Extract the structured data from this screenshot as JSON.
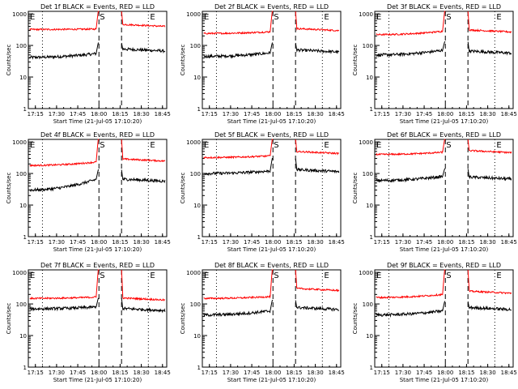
{
  "colors": {
    "events": "#000000",
    "lld": "#ff0000",
    "background": "#ffffff",
    "axes": "#000000"
  },
  "chart_data": [
    {
      "type": "line",
      "detector": "1f",
      "title": "Det 1f BLACK = Events, RED = LLD",
      "xlabel": "Start Time (21-Jul-05 17:10:20)",
      "ylabel": "Counts/sec",
      "x_ticks": [
        "17:15",
        "17:30",
        "17:45",
        "18:00",
        "18:15",
        "18:30",
        "18:45"
      ],
      "y_ticks": [
        "1",
        "10",
        "100",
        "1000"
      ],
      "y_scale": "log",
      "ylim": [
        1,
        1200
      ],
      "markers": {
        "eclipse_start": "E",
        "saa": "S",
        "eclipse_end": "E"
      },
      "vertical_lines": {
        "dotted": [
          "17:20",
          "18:35"
        ],
        "dashed": [
          "18:00",
          "18:16"
        ]
      },
      "series": [
        {
          "role": "events",
          "start": 42,
          "pre_end": 55,
          "peak": 120,
          "post": 70
        },
        {
          "role": "lld",
          "start": 320,
          "pre_end": 330,
          "peak": 1200,
          "post": 420
        }
      ]
    },
    {
      "type": "line",
      "detector": "2f",
      "title": "Det 2f BLACK = Events, RED = LLD",
      "xlabel": "Start Time (21-Jul-05 17:10:20)",
      "ylabel": "Counts/sec",
      "x_ticks": [
        "17:15",
        "17:30",
        "17:45",
        "18:00",
        "18:15",
        "18:30",
        "18:45"
      ],
      "y_ticks": [
        "1",
        "10",
        "100",
        "1000"
      ],
      "y_scale": "log",
      "ylim": [
        1,
        1200
      ],
      "markers": {
        "eclipse_start": "E",
        "saa": "S",
        "eclipse_end": "E"
      },
      "vertical_lines": {
        "dotted": [
          "17:20",
          "18:35"
        ],
        "dashed": [
          "18:00",
          "18:16"
        ]
      },
      "series": [
        {
          "role": "events",
          "start": 45,
          "pre_end": 58,
          "peak": 120,
          "post": 65
        },
        {
          "role": "lld",
          "start": 240,
          "pre_end": 270,
          "peak": 1200,
          "post": 310
        }
      ]
    },
    {
      "type": "line",
      "detector": "3f",
      "title": "Det 3f BLACK = Events, RED = LLD",
      "xlabel": "Start Time (21-Jul-05 17:10:20)",
      "ylabel": "Counts/sec",
      "x_ticks": [
        "17:15",
        "17:30",
        "17:45",
        "18:00",
        "18:15",
        "18:30",
        "18:45"
      ],
      "y_ticks": [
        "1",
        "10",
        "100",
        "1000"
      ],
      "y_scale": "log",
      "ylim": [
        1,
        1200
      ],
      "markers": {
        "eclipse_start": "E",
        "saa": "S",
        "eclipse_end": "E"
      },
      "vertical_lines": {
        "dotted": [
          "17:20",
          "18:35"
        ],
        "dashed": [
          "18:00",
          "18:16"
        ]
      },
      "series": [
        {
          "role": "events",
          "start": 50,
          "pre_end": 70,
          "peak": 130,
          "post": 60
        },
        {
          "role": "lld",
          "start": 220,
          "pre_end": 280,
          "peak": 1200,
          "post": 280
        }
      ]
    },
    {
      "type": "line",
      "detector": "4f",
      "title": "Det 4f BLACK = Events, RED = LLD",
      "xlabel": "Start Time (21-Jul-05 17:10:20)",
      "ylabel": "Counts/sec",
      "x_ticks": [
        "17:15",
        "17:30",
        "17:45",
        "18:00",
        "18:15",
        "18:30",
        "18:45"
      ],
      "y_ticks": [
        "1",
        "10",
        "100",
        "1000"
      ],
      "y_scale": "log",
      "ylim": [
        1,
        1200
      ],
      "markers": {
        "eclipse_start": "E",
        "saa": "S",
        "eclipse_end": "E"
      },
      "vertical_lines": {
        "dotted": [
          "17:20",
          "18:35"
        ],
        "dashed": [
          "18:00",
          "18:16"
        ]
      },
      "series": [
        {
          "role": "events",
          "start": 30,
          "pre_end": 65,
          "peak": 130,
          "post": 60
        },
        {
          "role": "lld",
          "start": 180,
          "pre_end": 230,
          "peak": 1200,
          "post": 260
        }
      ]
    },
    {
      "type": "line",
      "detector": "5f",
      "title": "Det 5f BLACK = Events, RED = LLD",
      "xlabel": "Start Time (21-Jul-05 17:10:20)",
      "ylabel": "Counts/sec",
      "x_ticks": [
        "17:15",
        "17:30",
        "17:45",
        "18:00",
        "18:15",
        "18:30",
        "18:45"
      ],
      "y_ticks": [
        "1",
        "10",
        "100",
        "1000"
      ],
      "y_scale": "log",
      "ylim": [
        1,
        1200
      ],
      "markers": {
        "eclipse_start": "E",
        "saa": "S",
        "eclipse_end": "E"
      },
      "vertical_lines": {
        "dotted": [
          "17:20",
          "18:35"
        ],
        "dashed": [
          "18:00",
          "18:16"
        ]
      },
      "series": [
        {
          "role": "events",
          "start": 100,
          "pre_end": 120,
          "peak": 300,
          "post": 120
        },
        {
          "role": "lld",
          "start": 320,
          "pre_end": 360,
          "peak": 1200,
          "post": 450
        }
      ]
    },
    {
      "type": "line",
      "detector": "6f",
      "title": "Det 6f BLACK = Events, RED = LLD",
      "xlabel": "Start Time (21-Jul-05 17:10:20)",
      "ylabel": "Counts/sec",
      "x_ticks": [
        "17:15",
        "17:30",
        "17:45",
        "18:00",
        "18:15",
        "18:30",
        "18:45"
      ],
      "y_ticks": [
        "1",
        "10",
        "100",
        "1000"
      ],
      "y_scale": "log",
      "ylim": [
        1,
        1200
      ],
      "markers": {
        "eclipse_start": "E",
        "saa": "S",
        "eclipse_end": "E"
      },
      "vertical_lines": {
        "dotted": [
          "17:20",
          "18:35"
        ],
        "dashed": [
          "18:00",
          "18:16"
        ]
      },
      "series": [
        {
          "role": "events",
          "start": 60,
          "pre_end": 80,
          "peak": 140,
          "post": 70
        },
        {
          "role": "lld",
          "start": 400,
          "pre_end": 470,
          "peak": 1200,
          "post": 480
        }
      ]
    },
    {
      "type": "line",
      "detector": "7f",
      "title": "Det 7f BLACK = Events, RED = LLD",
      "xlabel": "Start Time (21-Jul-05 17:10:20)",
      "ylabel": "Counts/sec",
      "x_ticks": [
        "17:15",
        "17:30",
        "17:45",
        "18:00",
        "18:15",
        "18:30",
        "18:45"
      ],
      "y_ticks": [
        "1",
        "10",
        "100",
        "1000"
      ],
      "y_scale": "log",
      "ylim": [
        1,
        1200
      ],
      "markers": {
        "eclipse_start": "E",
        "saa": "S",
        "eclipse_end": "E"
      },
      "vertical_lines": {
        "dotted": [
          "17:20",
          "18:35"
        ],
        "dashed": [
          "18:00",
          "18:16"
        ]
      },
      "series": [
        {
          "role": "events",
          "start": 70,
          "pre_end": 80,
          "peak": 150,
          "post": 65
        },
        {
          "role": "lld",
          "start": 150,
          "pre_end": 165,
          "peak": 1200,
          "post": 140
        }
      ]
    },
    {
      "type": "line",
      "detector": "8f",
      "title": "Det 8f BLACK = Events, RED = LLD",
      "xlabel": "Start Time (21-Jul-05 17:10:20)",
      "ylabel": "Counts/sec",
      "x_ticks": [
        "17:15",
        "17:30",
        "17:45",
        "18:00",
        "18:15",
        "18:30",
        "18:45"
      ],
      "y_ticks": [
        "1",
        "10",
        "100",
        "1000"
      ],
      "y_scale": "log",
      "ylim": [
        1,
        1200
      ],
      "markers": {
        "eclipse_start": "E",
        "saa": "S",
        "eclipse_end": "E"
      },
      "vertical_lines": {
        "dotted": [
          "17:20",
          "18:35"
        ],
        "dashed": [
          "18:00",
          "18:16"
        ]
      },
      "series": [
        {
          "role": "events",
          "start": 45,
          "pre_end": 60,
          "peak": 130,
          "post": 70
        },
        {
          "role": "lld",
          "start": 150,
          "pre_end": 170,
          "peak": 1200,
          "post": 280
        }
      ]
    },
    {
      "type": "line",
      "detector": "9f",
      "title": "Det 9f BLACK = Events, RED = LLD",
      "xlabel": "Start Time (21-Jul-05 17:10:20)",
      "ylabel": "Counts/sec",
      "x_ticks": [
        "17:15",
        "17:30",
        "17:45",
        "18:00",
        "18:15",
        "18:30",
        "18:45"
      ],
      "y_ticks": [
        "1",
        "10",
        "100",
        "1000"
      ],
      "y_scale": "log",
      "ylim": [
        1,
        1200
      ],
      "markers": {
        "eclipse_start": "E",
        "saa": "S",
        "eclipse_end": "E"
      },
      "vertical_lines": {
        "dotted": [
          "17:20",
          "18:35"
        ],
        "dashed": [
          "18:00",
          "18:16"
        ]
      },
      "series": [
        {
          "role": "events",
          "start": 45,
          "pre_end": 60,
          "peak": 120,
          "post": 70
        },
        {
          "role": "lld",
          "start": 160,
          "pre_end": 200,
          "peak": 1200,
          "post": 230
        }
      ]
    }
  ]
}
